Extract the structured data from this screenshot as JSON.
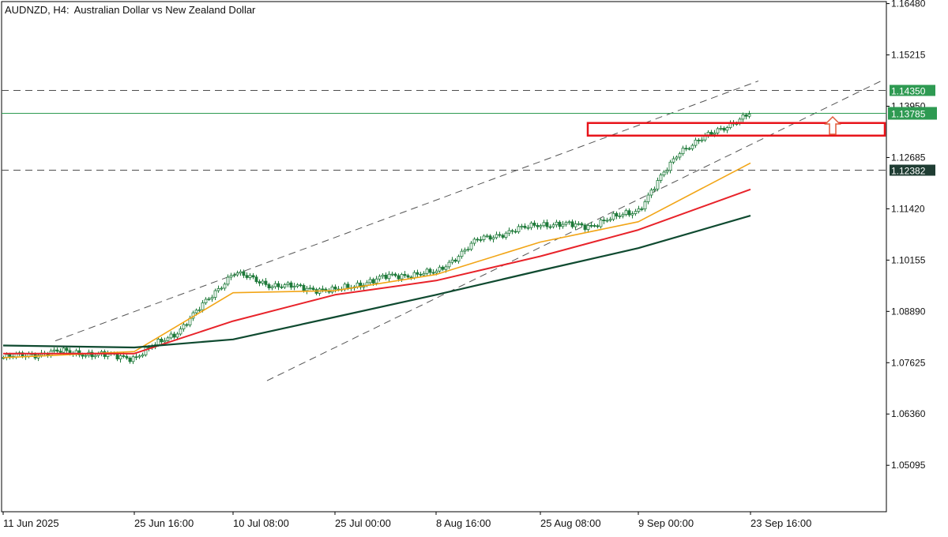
{
  "header": {
    "symbol": "AUDNZD, H4:",
    "description": "Australian Dollar vs New Zealand Dollar"
  },
  "colors": {
    "candle": "#1f7a3a",
    "ma_fast": "#f2a516",
    "ma_mid": "#e8232a",
    "ma_slow": "#0f4a30",
    "level_label_bg": "#2e9a52",
    "zone": "#e8131a",
    "arrow": "#e05a3a",
    "channel": "#555555",
    "grid_text": "#111111"
  },
  "chart_data": {
    "type": "line",
    "chart_style": "candlestick",
    "timeframe": "H4",
    "ylim": [
      1.0395,
      1.1653
    ],
    "y_ticks": [
      "1.16480",
      "1.15215",
      "1.13950",
      "1.12685",
      "1.11420",
      "1.10155",
      "1.08890",
      "1.07625",
      "1.06360",
      "1.05095"
    ],
    "x_ticks": [
      "11 Jun 2025",
      "25 Jun 16:00",
      "10 Jul 08:00",
      "25 Jul 00:00",
      "8 Aug 16:00",
      "25 Aug 08:00",
      "9 Sep 00:00",
      "23 Sep 16:00"
    ],
    "price_series": [
      {
        "date": "11 Jun 2025",
        "close": 1.0775
      },
      {
        "date": "18 Jun",
        "close": 1.079
      },
      {
        "date": "25 Jun 16:00",
        "close": 1.0775
      },
      {
        "date": "2 Jul",
        "close": 1.084
      },
      {
        "date": "10 Jul 08:00",
        "close": 1.0985
      },
      {
        "date": "17 Jul",
        "close": 1.0955
      },
      {
        "date": "25 Jul 00:00",
        "close": 1.094
      },
      {
        "date": "1 Aug",
        "close": 1.0975
      },
      {
        "date": "8 Aug 16:00",
        "close": 1.0985
      },
      {
        "date": "12 Aug",
        "close": 1.1065
      },
      {
        "date": "25 Aug 08:00",
        "close": 1.1105
      },
      {
        "date": "1 Sep",
        "close": 1.11
      },
      {
        "date": "9 Sep 00:00",
        "close": 1.114
      },
      {
        "date": "16 Sep",
        "close": 1.1285
      },
      {
        "date": "23 Sep 16:00",
        "close": 1.1378
      }
    ],
    "series": [
      {
        "name": "",
        "color": "#f2a516",
        "points": [
          {
            "date": "11 Jun 2025",
            "value": 1.0775
          },
          {
            "date": "25 Jun 16:00",
            "value": 1.079
          },
          {
            "date": "10 Jul 08:00",
            "value": 1.0935
          },
          {
            "date": "25 Jul 00:00",
            "value": 1.094
          },
          {
            "date": "8 Aug 16:00",
            "value": 1.098
          },
          {
            "date": "25 Aug 08:00",
            "value": 1.106
          },
          {
            "date": "9 Sep 00:00",
            "value": 1.111
          },
          {
            "date": "23 Sep 16:00",
            "value": 1.1255
          }
        ]
      },
      {
        "name": "",
        "color": "#e8232a",
        "points": [
          {
            "date": "11 Jun 2025",
            "value": 1.0785
          },
          {
            "date": "25 Jun 16:00",
            "value": 1.0785
          },
          {
            "date": "10 Jul 08:00",
            "value": 1.0865
          },
          {
            "date": "25 Jul 00:00",
            "value": 1.093
          },
          {
            "date": "8 Aug 16:00",
            "value": 1.0965
          },
          {
            "date": "25 Aug 08:00",
            "value": 1.1025
          },
          {
            "date": "9 Sep 00:00",
            "value": 1.109
          },
          {
            "date": "23 Sep 16:00",
            "value": 1.119
          }
        ]
      },
      {
        "name": "",
        "color": "#0f4a30",
        "points": [
          {
            "date": "11 Jun 2025",
            "value": 1.0805
          },
          {
            "date": "25 Jun 16:00",
            "value": 1.08
          },
          {
            "date": "10 Jul 08:00",
            "value": 1.082
          },
          {
            "date": "25 Jul 00:00",
            "value": 1.0875
          },
          {
            "date": "8 Aug 16:00",
            "value": 1.093
          },
          {
            "date": "25 Aug 08:00",
            "value": 1.099
          },
          {
            "date": "9 Sep 00:00",
            "value": 1.1045
          },
          {
            "date": "23 Sep 16:00",
            "value": 1.1125
          }
        ]
      }
    ],
    "levels": [
      {
        "label": "1.14350",
        "value": 1.1435,
        "style": "dashed"
      },
      {
        "label": "1.13785",
        "value": 1.13785,
        "style": "solid-current-price"
      },
      {
        "label": "1.12382",
        "value": 1.12382,
        "style": "dashed"
      }
    ],
    "annotations": [
      {
        "type": "channel-line",
        "from": {
          "date": "18 Jun",
          "value": 1.082
        },
        "to": {
          "date": "23 Sep 16:00",
          "value": 1.145
        }
      },
      {
        "type": "channel-line",
        "from": {
          "date": "17 Jul",
          "value": 1.072
        },
        "to": {
          "date": "23 Sep 16:00",
          "value": 1.13
        }
      },
      {
        "type": "zone-rectangle",
        "value_top": 1.134,
        "value_bottom": 1.1325
      },
      {
        "type": "arrow",
        "direction": "up"
      }
    ],
    "grid": false,
    "legend": "none"
  }
}
